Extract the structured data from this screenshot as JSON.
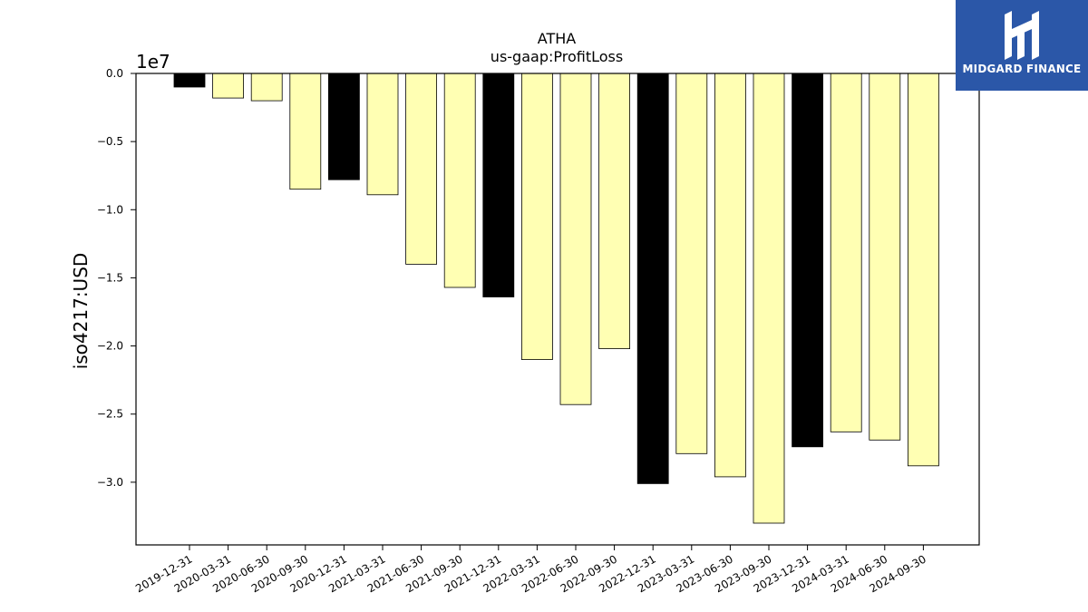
{
  "chart_data": {
    "type": "bar",
    "title": "ATHA",
    "subtitle": "us-gaap:ProfitLoss",
    "xlabel": "",
    "ylabel": "iso4217:USD",
    "y_multiplier_label": "1e7",
    "ylim": [
      -3.46,
      0.0
    ],
    "yticks": [
      0.0,
      -0.5,
      -1.0,
      -1.5,
      -2.0,
      -2.5,
      -3.0
    ],
    "ytick_labels": [
      "0.0",
      "−0.5",
      "−1.0",
      "−1.5",
      "−2.0",
      "−2.5",
      "−3.0"
    ],
    "grid": false,
    "categories": [
      "2019-12-31",
      "2020-03-31",
      "2020-06-30",
      "2020-09-30",
      "2020-12-31",
      "2021-03-31",
      "2021-06-30",
      "2021-09-30",
      "2021-12-31",
      "2022-03-31",
      "2022-06-30",
      "2022-09-30",
      "2022-12-31",
      "2023-03-31",
      "2023-06-30",
      "2023-09-30",
      "2023-12-31",
      "2024-03-31",
      "2024-06-30",
      "2024-09-30"
    ],
    "values": [
      -0.1,
      -0.18,
      -0.2,
      -0.85,
      -0.78,
      -0.89,
      -1.4,
      -1.57,
      -1.64,
      -2.1,
      -2.43,
      -2.02,
      -3.01,
      -2.79,
      -2.96,
      -3.3,
      -2.74,
      -2.63,
      -2.69,
      -2.88
    ],
    "bar_colors": [
      "#000000",
      "#ffffb3",
      "#ffffb3",
      "#ffffb3",
      "#000000",
      "#ffffb3",
      "#ffffb3",
      "#ffffb3",
      "#000000",
      "#ffffb3",
      "#ffffb3",
      "#ffffb3",
      "#000000",
      "#ffffb3",
      "#ffffb3",
      "#ffffb3",
      "#000000",
      "#ffffb3",
      "#ffffb3",
      "#ffffb3"
    ]
  },
  "logo": {
    "text": "MIDGARD FINANCE",
    "background": "#2b57a8"
  }
}
